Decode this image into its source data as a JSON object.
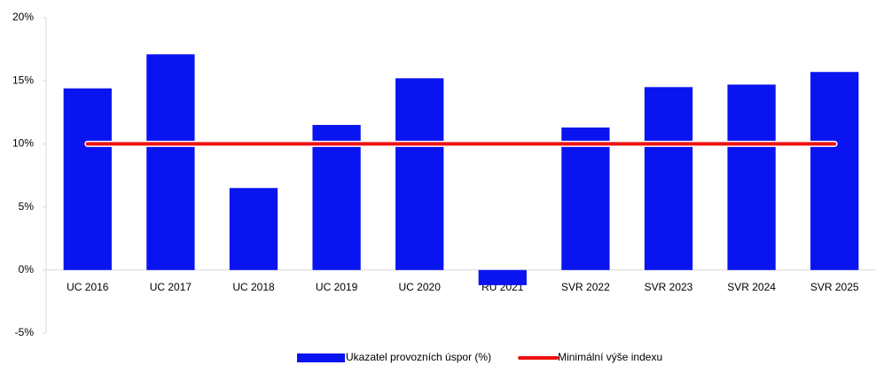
{
  "chart_data": {
    "type": "bar",
    "categories": [
      "UC 2016",
      "UC 2017",
      "UC 2018",
      "UC 2019",
      "UC 2020",
      "RU 2021",
      "SVR 2022",
      "SVR 2023",
      "SVR 2024",
      "SVR 2025"
    ],
    "series": [
      {
        "name": "Ukazatel provozních úspor (%)",
        "type": "bar",
        "color": "#0a14f0",
        "values": [
          14.4,
          17.1,
          6.5,
          11.5,
          15.2,
          -1.2,
          11.3,
          14.5,
          14.7,
          15.7
        ]
      },
      {
        "name": "Minimální výše indexu",
        "type": "line",
        "color": "#ee1111",
        "values": [
          10,
          10,
          10,
          10,
          10,
          10,
          10,
          10,
          10,
          10
        ]
      }
    ],
    "ylim": [
      -5,
      20
    ],
    "yticks": [
      {
        "value": -5,
        "label": "-5%"
      },
      {
        "value": 0,
        "label": "0%"
      },
      {
        "value": 5,
        "label": "5%"
      },
      {
        "value": 10,
        "label": "10%"
      },
      {
        "value": 15,
        "label": "15%"
      },
      {
        "value": 20,
        "label": "20%"
      }
    ],
    "legend": "bottom"
  }
}
